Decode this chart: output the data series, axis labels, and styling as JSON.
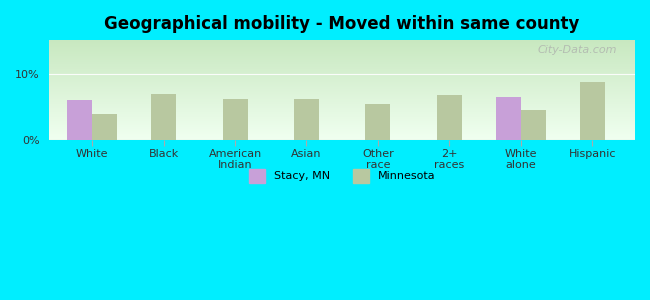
{
  "title": "Geographical mobility - Moved within same county",
  "categories": [
    "White",
    "Black",
    "American\nIndian",
    "Asian",
    "Other\nrace",
    "2+\nraces",
    "White\nalone",
    "Hispanic"
  ],
  "stacy_values": [
    6.0,
    null,
    null,
    null,
    null,
    null,
    6.5,
    null
  ],
  "minnesota_values": [
    4.0,
    7.0,
    6.2,
    6.2,
    5.5,
    6.8,
    4.5,
    8.8
  ],
  "stacy_color": "#c8a0d8",
  "minnesota_color": "#b8c8a0",
  "background_color": "#00eeff",
  "plot_bg_top": "#c8e8c0",
  "plot_bg_bottom": "#f0fff0",
  "ylim": [
    0,
    15
  ],
  "yticks": [
    0,
    10
  ],
  "ytick_labels": [
    "0%",
    "10%"
  ],
  "bar_width": 0.35,
  "legend_stacy": "Stacy, MN",
  "legend_minnesota": "Minnesota",
  "watermark": "City-Data.com"
}
